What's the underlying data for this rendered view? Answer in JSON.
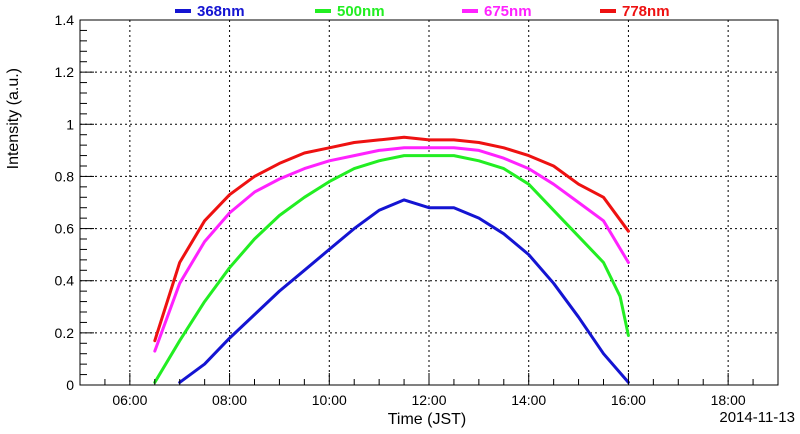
{
  "chart_data": {
    "type": "line",
    "xlabel": "Time (JST)",
    "ylabel": "Intensity (a.u.)",
    "date_label": "2014-11-13",
    "xlim": [
      "05:00",
      "19:00"
    ],
    "ylim": [
      0,
      1.4
    ],
    "x_ticks": [
      "06:00",
      "08:00",
      "10:00",
      "12:00",
      "14:00",
      "16:00",
      "18:00"
    ],
    "y_ticks": [
      "0",
      "0.2",
      "0.4",
      "0.6",
      "0.8",
      "1",
      "1.2",
      "1.4"
    ],
    "grid": true,
    "legend_position": "top",
    "series": [
      {
        "name": "368nm",
        "color": "#1414d2",
        "x": [
          "07:00",
          "07:30",
          "08:00",
          "08:30",
          "09:00",
          "09:30",
          "10:00",
          "10:30",
          "11:00",
          "11:30",
          "12:00",
          "12:30",
          "13:00",
          "13:30",
          "14:00",
          "14:30",
          "15:00",
          "15:30",
          "16:00"
        ],
        "y": [
          0.01,
          0.08,
          0.18,
          0.27,
          0.36,
          0.44,
          0.52,
          0.6,
          0.67,
          0.71,
          0.68,
          0.68,
          0.64,
          0.58,
          0.5,
          0.39,
          0.26,
          0.12,
          0.01
        ]
      },
      {
        "name": "500nm",
        "color": "#22ee22",
        "x": [
          "06:30",
          "07:00",
          "07:30",
          "08:00",
          "08:30",
          "09:00",
          "09:30",
          "10:00",
          "10:30",
          "11:00",
          "11:30",
          "12:00",
          "12:30",
          "13:00",
          "13:30",
          "14:00",
          "14:30",
          "15:00",
          "15:30",
          "15:50",
          "16:00"
        ],
        "y": [
          0.01,
          0.17,
          0.32,
          0.45,
          0.56,
          0.65,
          0.72,
          0.78,
          0.83,
          0.86,
          0.88,
          0.88,
          0.88,
          0.86,
          0.83,
          0.77,
          0.67,
          0.57,
          0.47,
          0.34,
          0.19
        ]
      },
      {
        "name": "675nm",
        "color": "#ff22ff",
        "x": [
          "06:30",
          "07:00",
          "07:30",
          "08:00",
          "08:30",
          "09:00",
          "09:30",
          "10:00",
          "10:30",
          "11:00",
          "11:30",
          "12:00",
          "12:30",
          "13:00",
          "13:30",
          "14:00",
          "14:30",
          "15:00",
          "15:30",
          "16:00"
        ],
        "y": [
          0.13,
          0.39,
          0.55,
          0.66,
          0.74,
          0.79,
          0.83,
          0.86,
          0.88,
          0.9,
          0.91,
          0.91,
          0.91,
          0.9,
          0.87,
          0.83,
          0.77,
          0.7,
          0.63,
          0.47
        ]
      },
      {
        "name": "778nm",
        "color": "#ee1111",
        "x": [
          "06:30",
          "07:00",
          "07:30",
          "08:00",
          "08:30",
          "09:00",
          "09:30",
          "10:00",
          "10:30",
          "11:00",
          "11:30",
          "12:00",
          "12:30",
          "13:00",
          "13:30",
          "14:00",
          "14:30",
          "15:00",
          "15:30",
          "16:00"
        ],
        "y": [
          0.17,
          0.47,
          0.63,
          0.73,
          0.8,
          0.85,
          0.89,
          0.91,
          0.93,
          0.94,
          0.95,
          0.94,
          0.94,
          0.93,
          0.91,
          0.88,
          0.84,
          0.77,
          0.72,
          0.59
        ]
      }
    ]
  }
}
